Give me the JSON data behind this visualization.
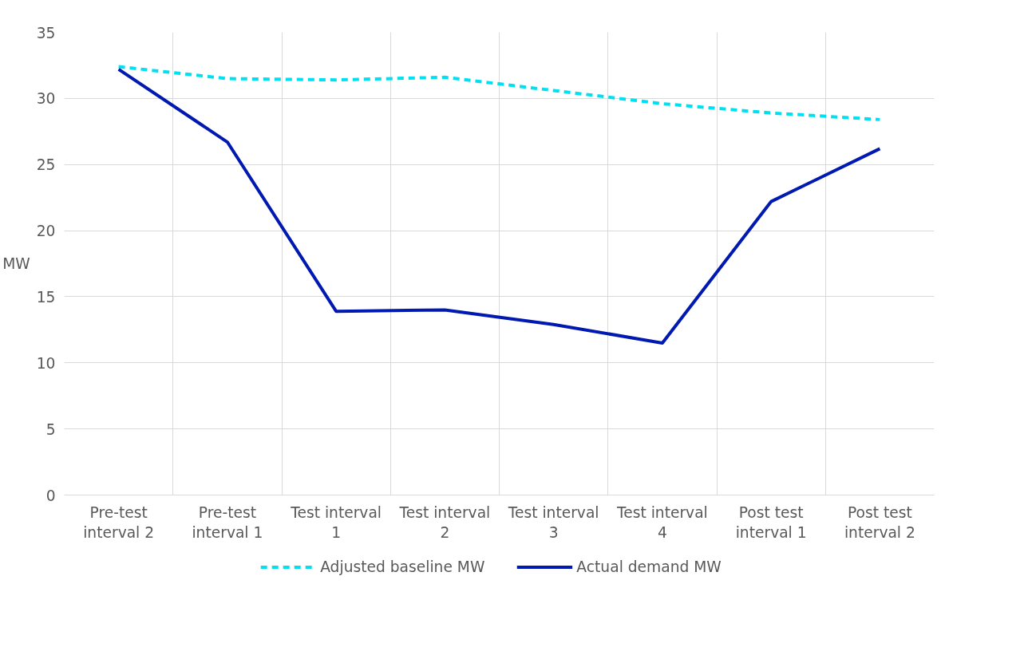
{
  "chart_data": {
    "type": "line",
    "ylabel": "MW",
    "categories": [
      "Pre-test interval 2",
      "Pre-test interval 1",
      "Test interval 1",
      "Test interval 2",
      "Test interval 3",
      "Test interval 4",
      "Post test interval 1",
      "Post test interval 2"
    ],
    "series": [
      {
        "name": "Adjusted baseline MW",
        "color": "#00e0f0",
        "line_style": "dashed",
        "values": [
          32.4,
          31.5,
          31.4,
          31.6,
          30.6,
          29.6,
          28.9,
          28.4
        ]
      },
      {
        "name": "Actual demand MW",
        "color": "#0019b0",
        "line_style": "solid",
        "values": [
          32.2,
          26.7,
          13.9,
          14.0,
          12.9,
          11.5,
          22.2,
          26.2
        ]
      }
    ],
    "ylim": [
      0,
      35
    ],
    "yticks": [
      0,
      5,
      10,
      15,
      20,
      25,
      30,
      35
    ],
    "grid": true,
    "legend": "bottom",
    "marker": "none"
  }
}
